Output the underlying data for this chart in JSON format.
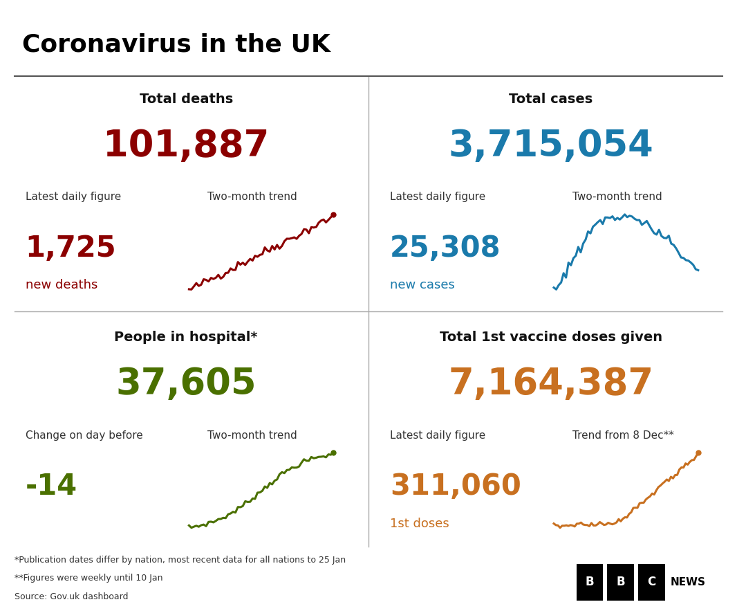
{
  "title": "Coronavirus in the UK",
  "title_color": "#000000",
  "background_color": "#ffffff",
  "divider_color": "#aaaaaa",
  "panel_titles": [
    "Total deaths",
    "Total cases",
    "People in hospital*",
    "Total 1st vaccine doses given"
  ],
  "panel_title_color": "#111111",
  "big_numbers": [
    "101,887",
    "3,715,054",
    "37,605",
    "7,164,387"
  ],
  "big_number_colors": [
    "#8b0000",
    "#1a7aab",
    "#4a7000",
    "#c87020"
  ],
  "sub_labels_left": [
    "Latest daily figure",
    "Latest daily figure",
    "Change on day before",
    "Latest daily figure"
  ],
  "sub_labels_right": [
    "Two-month trend",
    "Two-month trend",
    "Two-month trend",
    "Trend from 8 Dec**"
  ],
  "daily_numbers": [
    "1,725",
    "25,308",
    "-14",
    "311,060"
  ],
  "daily_number_colors": [
    "#8b0000",
    "#1a7aab",
    "#4a7000",
    "#c87020"
  ],
  "daily_sublabels": [
    "new deaths",
    "new cases",
    "",
    "1st doses"
  ],
  "daily_sublabel_colors": [
    "#8b0000",
    "#1a7aab",
    "#4a7000",
    "#c87020"
  ],
  "footnote1": "*Publication dates differ by nation, most recent data for all nations to 25 Jan",
  "footnote2": "**Figures were weekly until 10 Jan",
  "footnote3": "Source: Gov.uk dashboard",
  "trend_colors": [
    "#8b0000",
    "#1a7aab",
    "#4a7000",
    "#c87020"
  ]
}
